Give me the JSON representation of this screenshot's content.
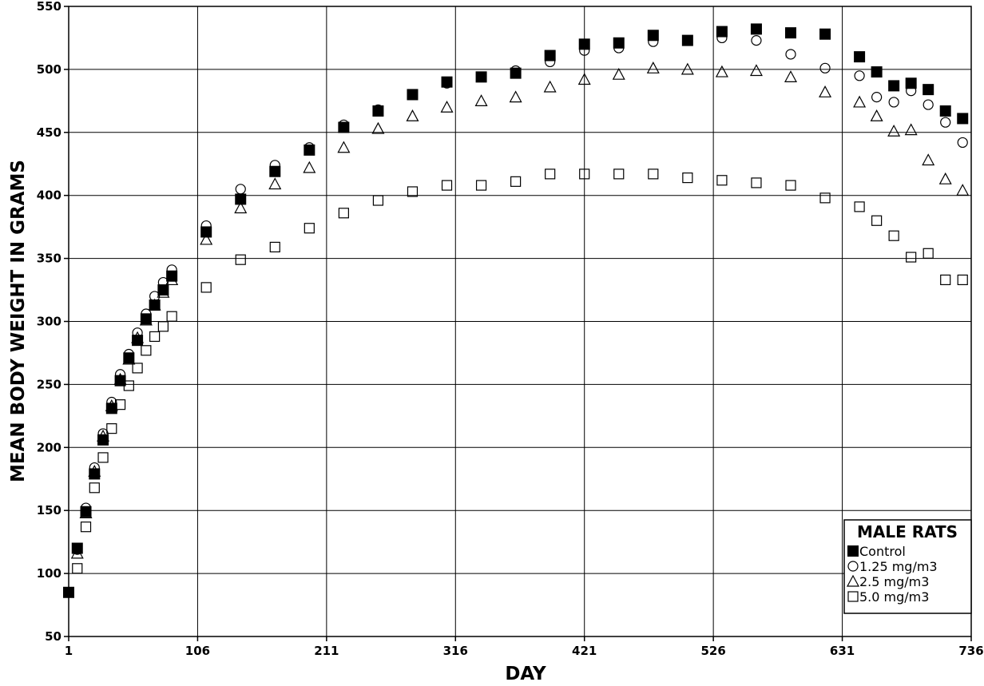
{
  "chart_data": {
    "type": "scatter",
    "xlabel": "DAY",
    "ylabel": "MEAN BODY WEIGHT IN GRAMS",
    "xlim": [
      1,
      736
    ],
    "ylim": [
      50,
      550
    ],
    "x_ticks": [
      1,
      106,
      211,
      316,
      421,
      526,
      631,
      736
    ],
    "y_ticks": [
      50,
      100,
      150,
      200,
      250,
      300,
      350,
      400,
      450,
      500,
      550
    ],
    "grid": true,
    "legend": {
      "title": "MALE RATS",
      "placement": "bottom-right"
    },
    "series": [
      {
        "name": "Control",
        "marker": "filled-square",
        "x": [
          1,
          8,
          15,
          22,
          29,
          36,
          43,
          50,
          57,
          64,
          71,
          78,
          85,
          113,
          141,
          169,
          197,
          225,
          253,
          281,
          309,
          337,
          365,
          393,
          421,
          449,
          477,
          505,
          533,
          561,
          589,
          617,
          645,
          659,
          673,
          687,
          701,
          715,
          729
        ],
        "y": [
          85,
          120,
          149,
          179,
          206,
          231,
          253,
          271,
          285,
          302,
          313,
          325,
          336,
          371,
          397,
          419,
          436,
          454,
          467,
          480,
          490,
          494,
          497,
          511,
          520,
          521,
          527,
          523,
          530,
          532,
          529,
          528,
          510,
          498,
          487,
          489,
          484,
          467,
          461
        ]
      },
      {
        "name": "1.25 mg/m3",
        "marker": "open-circle",
        "x": [
          8,
          15,
          22,
          29,
          36,
          43,
          50,
          57,
          64,
          71,
          78,
          85,
          113,
          141,
          169,
          197,
          225,
          253,
          281,
          309,
          337,
          365,
          393,
          421,
          449,
          477,
          505,
          533,
          561,
          589,
          617,
          645,
          659,
          673,
          687,
          701,
          715,
          729
        ],
        "y": [
          119,
          152,
          184,
          211,
          236,
          258,
          274,
          291,
          306,
          320,
          331,
          341,
          376,
          405,
          424,
          438,
          456,
          468,
          480,
          489,
          494,
          499,
          506,
          515,
          517,
          522,
          523,
          525,
          523,
          512,
          501,
          495,
          478,
          474,
          483,
          472,
          458,
          442
        ]
      },
      {
        "name": "2.5 mg/m3",
        "marker": "open-triangle",
        "x": [
          8,
          15,
          22,
          29,
          36,
          43,
          50,
          57,
          64,
          71,
          78,
          85,
          113,
          141,
          169,
          197,
          225,
          253,
          281,
          309,
          337,
          365,
          393,
          421,
          449,
          477,
          505,
          533,
          561,
          589,
          617,
          645,
          659,
          673,
          687,
          701,
          715,
          729
        ],
        "y": [
          116,
          148,
          181,
          209,
          233,
          254,
          270,
          287,
          301,
          313,
          323,
          333,
          365,
          390,
          409,
          422,
          438,
          453,
          463,
          470,
          475,
          478,
          486,
          492,
          496,
          501,
          500,
          498,
          499,
          494,
          482,
          474,
          463,
          451,
          452,
          428,
          413,
          404
        ]
      },
      {
        "name": "5.0 mg/m3",
        "marker": "open-square",
        "x": [
          8,
          15,
          22,
          29,
          36,
          43,
          50,
          57,
          64,
          71,
          78,
          85,
          113,
          141,
          169,
          197,
          225,
          253,
          281,
          309,
          337,
          365,
          393,
          421,
          449,
          477,
          505,
          533,
          561,
          589,
          617,
          645,
          659,
          673,
          687,
          701,
          715,
          729
        ],
        "y": [
          104,
          137,
          168,
          192,
          215,
          234,
          249,
          263,
          277,
          288,
          296,
          304,
          327,
          349,
          359,
          374,
          386,
          396,
          403,
          408,
          408,
          411,
          417,
          417,
          417,
          417,
          414,
          412,
          410,
          408,
          398,
          391,
          380,
          368,
          351,
          354,
          333,
          333
        ]
      }
    ]
  }
}
